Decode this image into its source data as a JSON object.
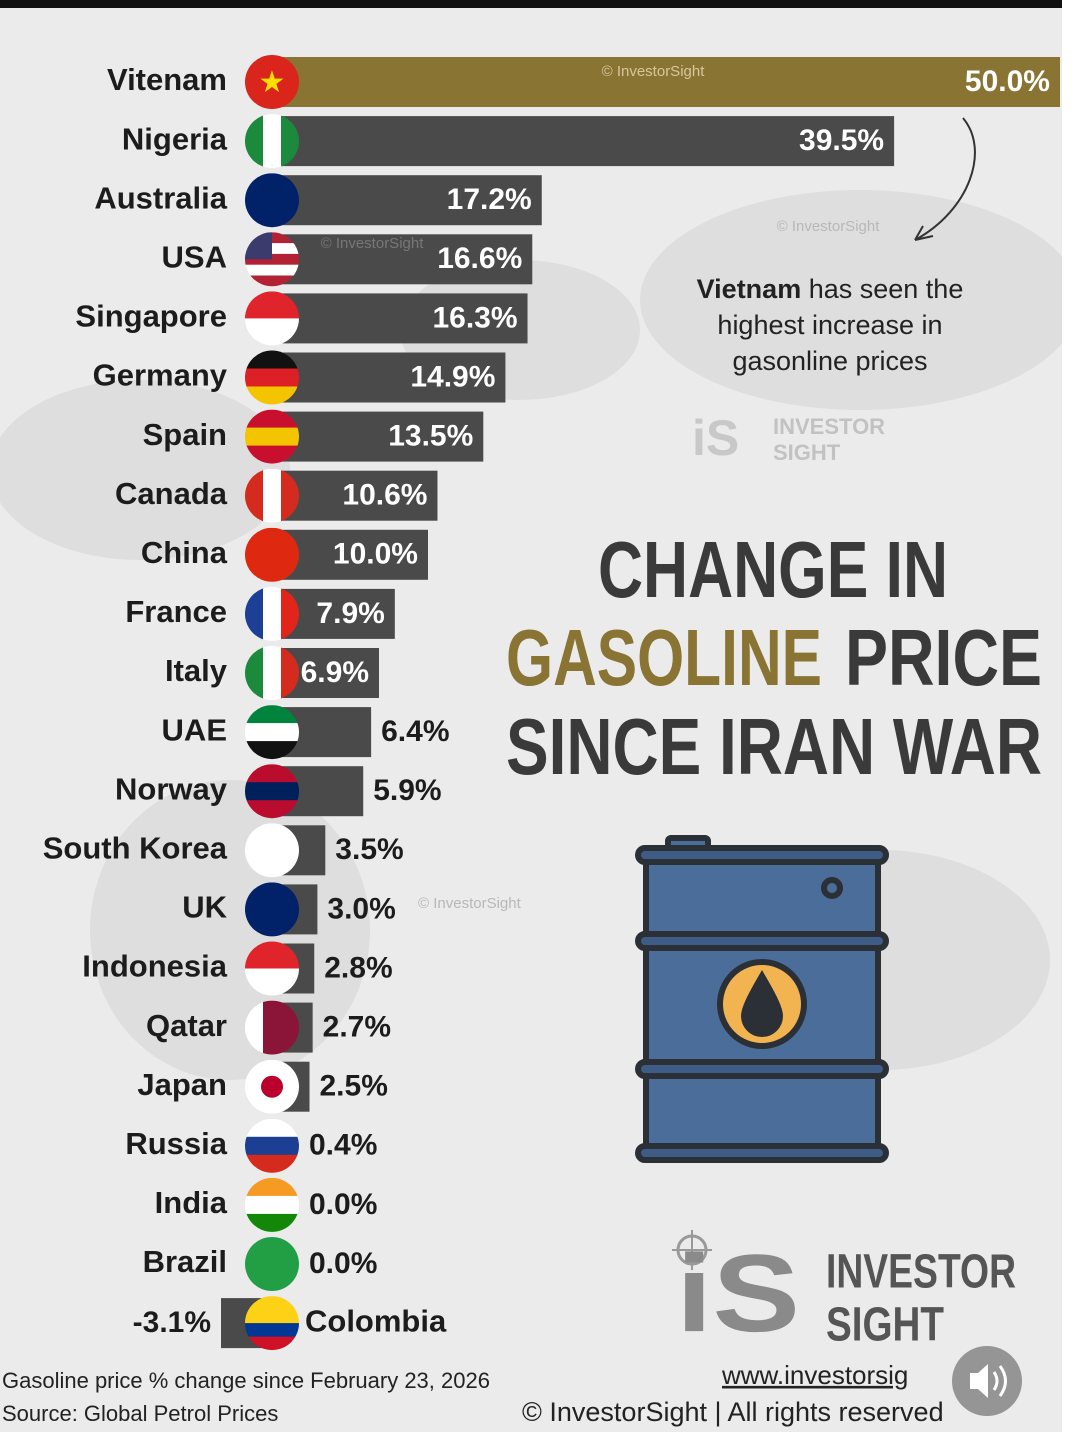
{
  "chart_data": {
    "type": "barh",
    "title": {
      "line1": "CHANGE IN",
      "highlight": "GASOLINE",
      "line2_rest": "PRICE",
      "line3": "SINCE IRAN WAR"
    },
    "annotation": {
      "bold": "Vietnam",
      "rest": "has seen the",
      "line2": "highest increase in",
      "line3": "gasonline prices"
    },
    "categories": [
      "Vitenam",
      "Nigeria",
      "Australia",
      "USA",
      "Singapore",
      "Germany",
      "Spain",
      "Canada",
      "China",
      "France",
      "Italy",
      "UAE",
      "Norway",
      "South Korea",
      "UK",
      "Indonesia",
      "Qatar",
      "Japan",
      "Russia",
      "India",
      "Brazil",
      "Colombia"
    ],
    "values": [
      50.0,
      39.5,
      17.2,
      16.6,
      16.3,
      14.9,
      13.5,
      10.6,
      10.0,
      7.9,
      6.9,
      6.4,
      5.9,
      3.5,
      3.0,
      2.8,
      2.7,
      2.5,
      0.4,
      0.0,
      0.0,
      -3.1
    ],
    "value_labels": [
      "50.0%",
      "39.5%",
      "17.2%",
      "16.6%",
      "16.3%",
      "14.9%",
      "13.5%",
      "10.6%",
      "10.0%",
      "7.9%",
      "6.9%",
      "6.4%",
      "5.9%",
      "3.5%",
      "3.0%",
      "2.8%",
      "2.7%",
      "2.5%",
      "0.4%",
      "0.0%",
      "0.0%",
      "-3.1%"
    ],
    "colors": [
      "#8a7434",
      "#4a4a4a",
      "#4a4a4a",
      "#4a4a4a",
      "#4a4a4a",
      "#4a4a4a",
      "#4a4a4a",
      "#4a4a4a",
      "#4a4a4a",
      "#4a4a4a",
      "#4a4a4a",
      "#4a4a4a",
      "#4a4a4a",
      "#4a4a4a",
      "#4a4a4a",
      "#4a4a4a",
      "#4a4a4a",
      "#4a4a4a",
      "#4a4a4a",
      "#4a4a4a",
      "#4a4a4a",
      "#4a4a4a"
    ],
    "note": "Gasoline price % change since February 23, 2026",
    "source": "Source: Global Petrol Prices",
    "watermark": "© InvestorSight",
    "brand": {
      "line1": "INVESTOR",
      "line2": "SIGHT",
      "url": "www.investorsig",
      "copyright": "© InvestorSight |  All rights reserved"
    }
  }
}
